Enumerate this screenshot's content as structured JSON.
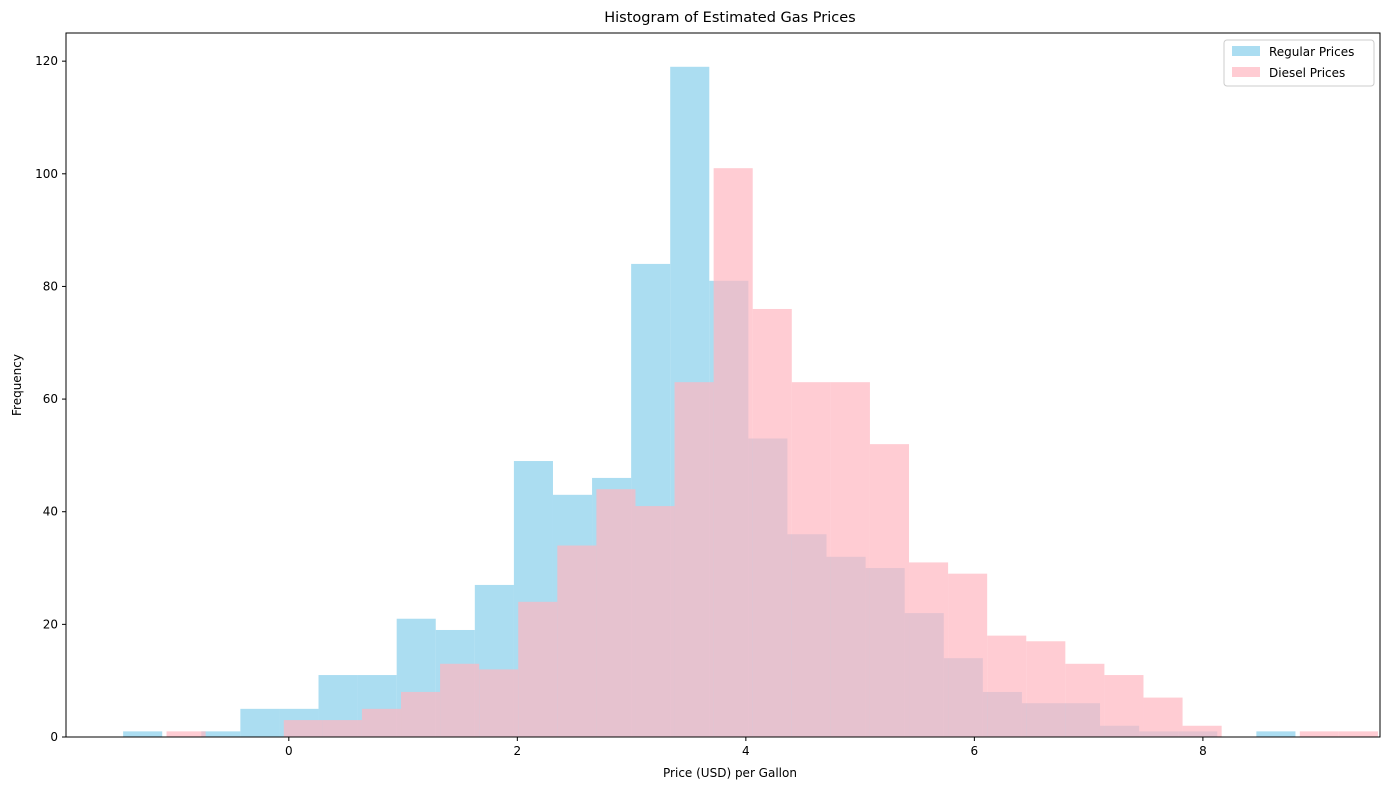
{
  "chart_data": {
    "type": "histogram",
    "title": "Histogram of Estimated Gas Prices",
    "xlabel": "Price (USD) per Gallon",
    "ylabel": "Frequency",
    "xlim": [
      -1.95,
      9.55
    ],
    "ylim": [
      0,
      125
    ],
    "xticks": [
      0,
      2,
      4,
      6,
      8
    ],
    "yticks": [
      0,
      20,
      40,
      60,
      80,
      100,
      120
    ],
    "legend_position": "top-right",
    "grid": false,
    "series": [
      {
        "name": "Regular Prices",
        "color": "#87ceeb",
        "opacity": 0.7,
        "bin_start": -1.45,
        "bin_width": 0.342,
        "counts": [
          1,
          0,
          1,
          5,
          5,
          11,
          11,
          21,
          19,
          27,
          49,
          43,
          46,
          84,
          119,
          81,
          53,
          36,
          32,
          30,
          22,
          14,
          8,
          6,
          6,
          2,
          1,
          1,
          0,
          1
        ]
      },
      {
        "name": "Diesel Prices",
        "color": "#ffb6c1",
        "opacity": 0.7,
        "bin_start": -1.07,
        "bin_width": 0.342,
        "counts": [
          1,
          0,
          0,
          3,
          3,
          5,
          8,
          13,
          12,
          24,
          34,
          44,
          41,
          63,
          101,
          76,
          63,
          63,
          52,
          31,
          29,
          18,
          17,
          13,
          11,
          7,
          2,
          0,
          0,
          1,
          1
        ]
      }
    ]
  }
}
